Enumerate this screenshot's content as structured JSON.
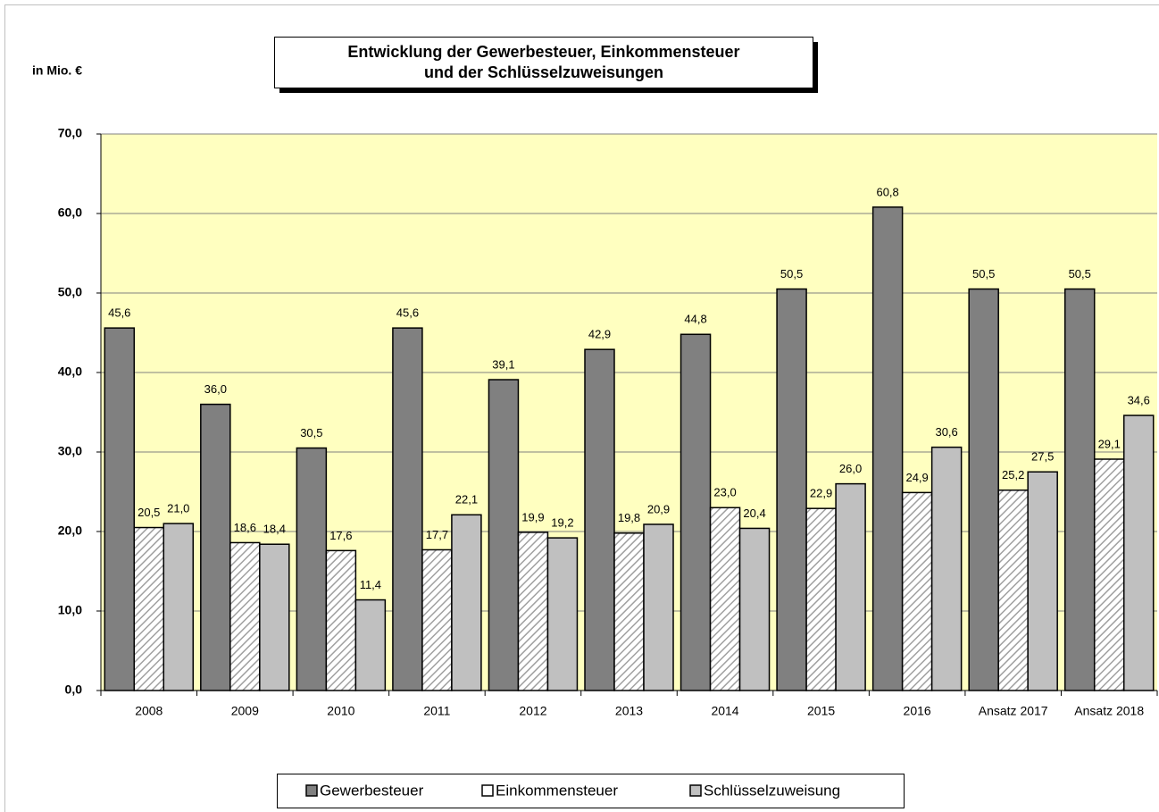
{
  "chart_data": {
    "type": "bar",
    "title": [
      "Entwicklung der Gewerbesteuer, Einkommensteuer",
      "und der Schlüsselzuweisungen"
    ],
    "y_label": "in Mio. €",
    "categories": [
      "2008",
      "2009",
      "2010",
      "2011",
      "2012",
      "2013",
      "2014",
      "2015",
      "2016",
      "Ansatz 2017",
      "Ansatz 2018"
    ],
    "series": [
      {
        "name": "Gewerbesteuer",
        "color": "#808080",
        "values": [
          45.6,
          36.0,
          30.5,
          45.6,
          39.1,
          42.9,
          44.8,
          50.5,
          60.8,
          50.5,
          50.5
        ],
        "value_labels": [
          "45,6",
          "36,0",
          "30,5",
          "45,6",
          "39,1",
          "42,9",
          "44,8",
          "50,5",
          "60,8",
          "50,5",
          "50,5"
        ]
      },
      {
        "name": "Einkommensteuer",
        "color": "#b0b0b0",
        "hatch": true,
        "values": [
          20.5,
          18.6,
          17.6,
          17.7,
          19.9,
          19.8,
          23.0,
          22.9,
          24.9,
          25.2,
          29.1
        ],
        "value_labels": [
          "20,5",
          "18,6",
          "17,6",
          "17,7",
          "19,9",
          "19,8",
          "23,0",
          "22,9",
          "24,9",
          "25,2",
          "29,1"
        ]
      },
      {
        "name": "Schlüsselzuweisung",
        "color": "#c0c0c0",
        "values": [
          21.0,
          18.4,
          11.4,
          22.1,
          19.2,
          20.9,
          20.4,
          26.0,
          30.6,
          27.5,
          34.6
        ],
        "value_labels": [
          "21,0",
          "18,4",
          "11,4",
          "22,1",
          "19,2",
          "20,9",
          "20,4",
          "26,0",
          "30,6",
          "27,5",
          "34,6"
        ]
      }
    ],
    "ylim": [
      0,
      70
    ],
    "yticks": [
      {
        "value": 0,
        "label": "0,0"
      },
      {
        "value": 10,
        "label": "10,0"
      },
      {
        "value": 20,
        "label": "20,0"
      },
      {
        "value": 30,
        "label": "30,0"
      },
      {
        "value": 40,
        "label": "40,0"
      },
      {
        "value": 50,
        "label": "50,0"
      },
      {
        "value": 60,
        "label": "60,0"
      },
      {
        "value": 70,
        "label": "70,0"
      }
    ],
    "grid": true,
    "background": "#ffffc0",
    "legend": "bottom"
  }
}
